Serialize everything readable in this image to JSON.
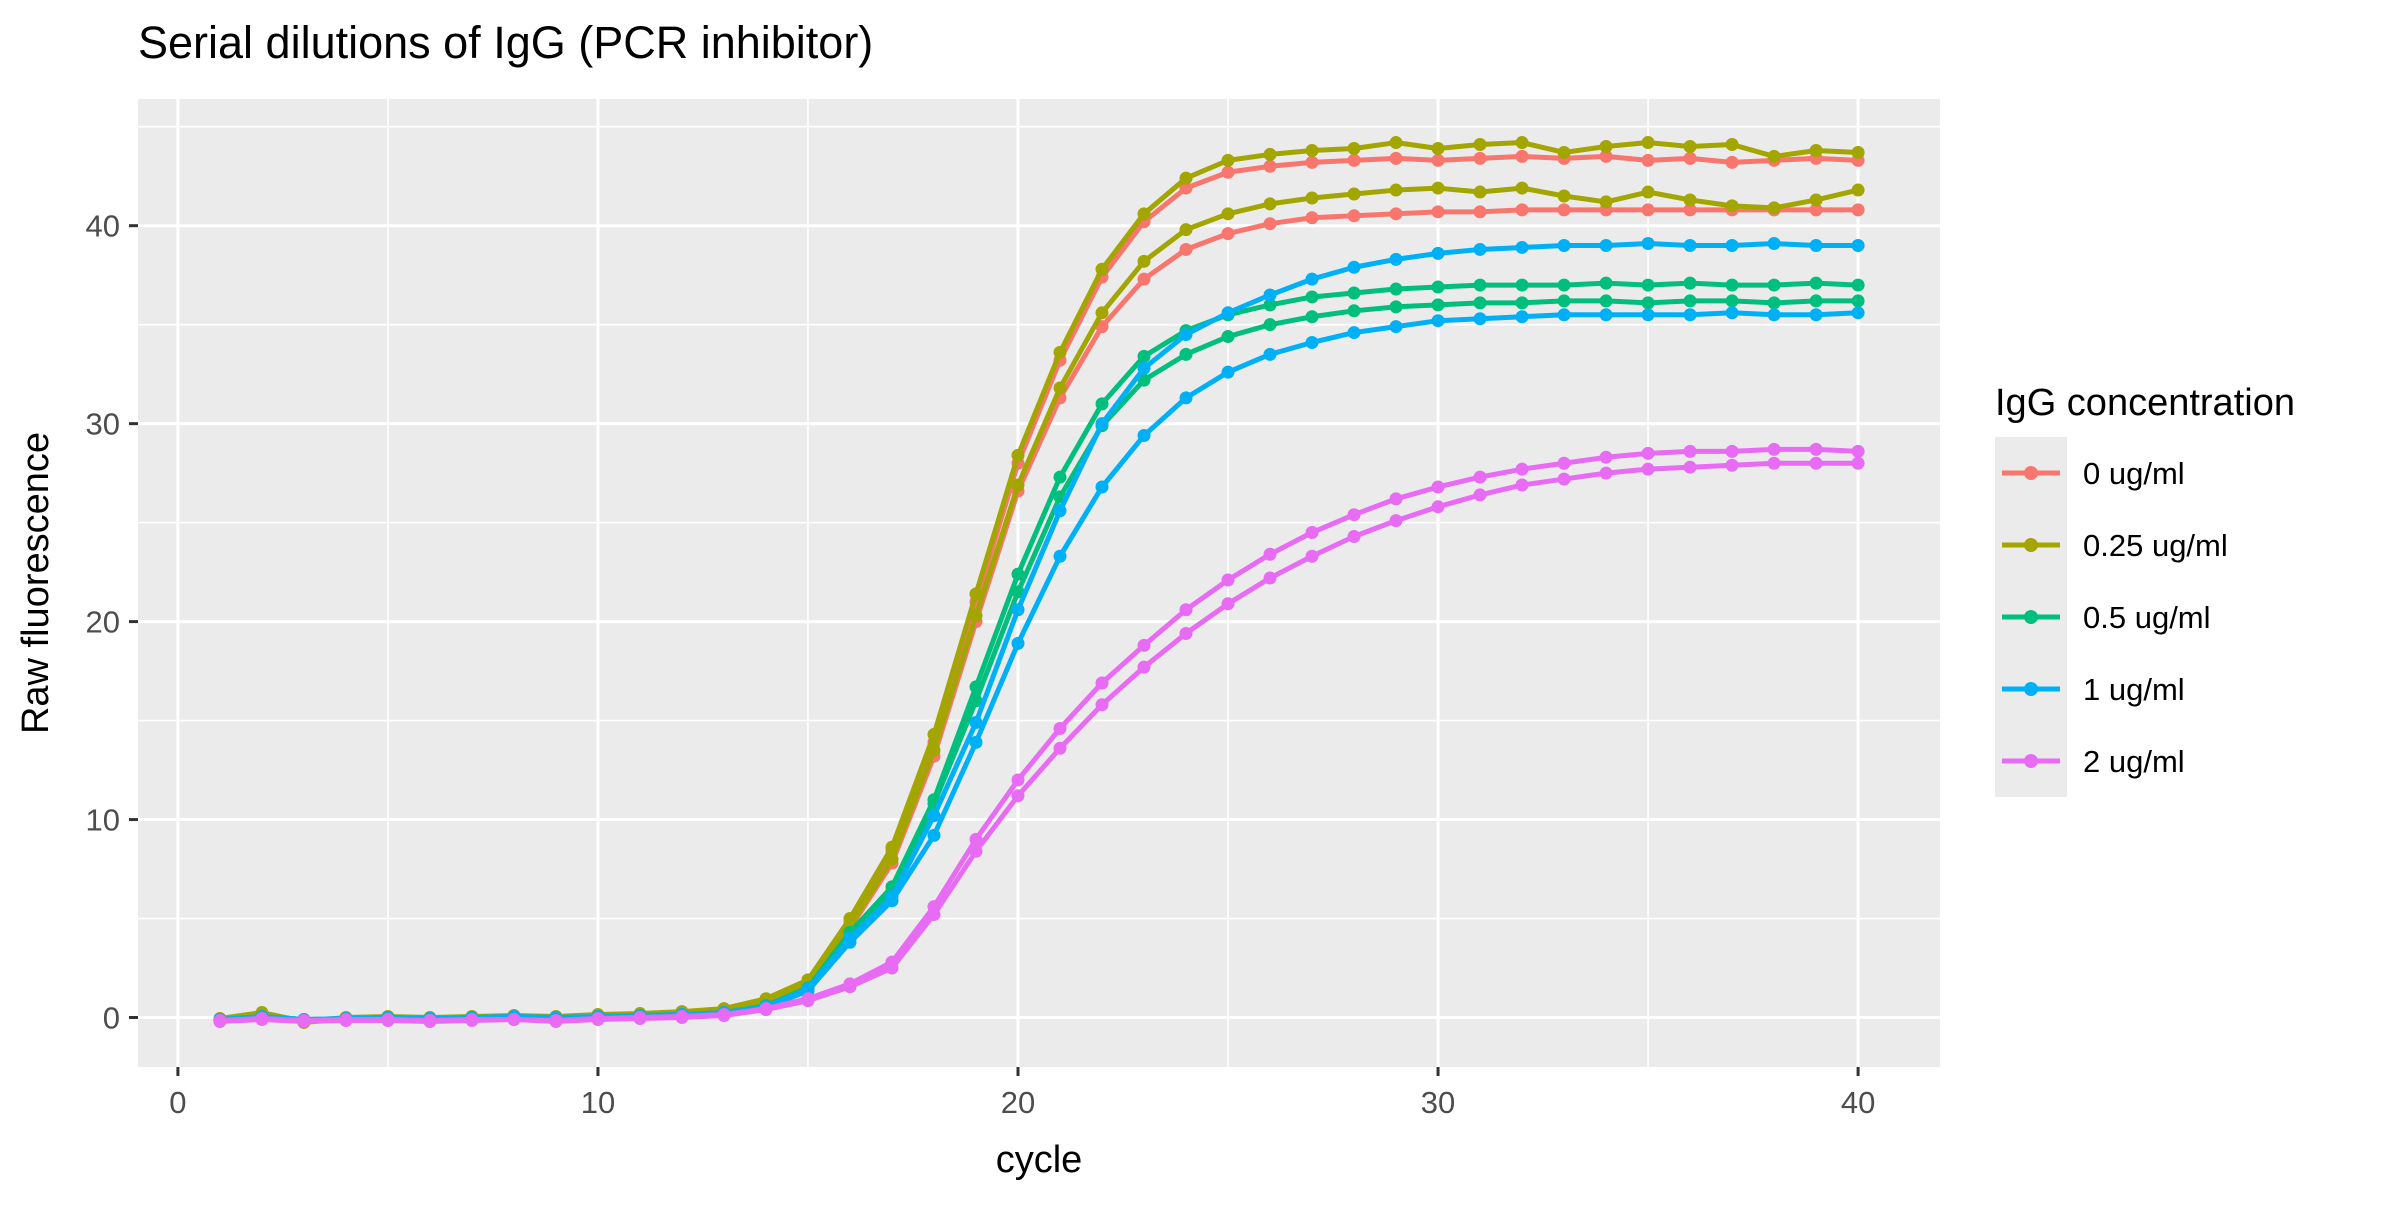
{
  "title": "Serial dilutions of IgG (PCR inhibitor)",
  "legend": {
    "title": "IgG concentration",
    "entries": [
      {
        "label": "0 ug/ml",
        "color": "#F8766D"
      },
      {
        "label": "0.25 ug/ml",
        "color": "#A3A500"
      },
      {
        "label": "0.5 ug/ml",
        "color": "#00BF7D"
      },
      {
        "label": "1 ug/ml",
        "color": "#00B0F6"
      },
      {
        "label": "2 ug/ml",
        "color": "#E76BF3"
      }
    ]
  },
  "colors": {
    "panel_bg": "#EBEBEB",
    "grid": "#FFFFFF",
    "tick_mark": "#333333",
    "tick_label": "#4D4D4D",
    "legend_key_bg": "#EBEBEB",
    "title_text": "#000000"
  },
  "chart_data": {
    "type": "line",
    "title": "Serial dilutions of IgG (PCR inhibitor)",
    "xlabel": "cycle",
    "ylabel": "Raw fluorescence",
    "legend_title": "IgG concentration",
    "legend_position": "right",
    "grid": "on",
    "x_ticks": [
      0,
      10,
      20,
      30,
      40
    ],
    "x_minor_ticks": [
      5,
      15,
      25,
      35
    ],
    "y_ticks": [
      0,
      10,
      20,
      30,
      40
    ],
    "y_minor_ticks": [
      5,
      15,
      25,
      35,
      45
    ],
    "xlim": [
      -0.95,
      41.95
    ],
    "ylim": [
      -2.5,
      46.4
    ],
    "x": [
      1,
      2,
      3,
      4,
      5,
      6,
      7,
      8,
      9,
      10,
      11,
      12,
      13,
      14,
      15,
      16,
      17,
      18,
      19,
      20,
      21,
      22,
      23,
      24,
      25,
      26,
      27,
      28,
      29,
      30,
      31,
      32,
      33,
      34,
      35,
      36,
      37,
      38,
      39,
      40
    ],
    "series": [
      {
        "name": "0 ug/ml",
        "replicate": 1,
        "color": "#F8766D",
        "values": [
          -0.1,
          0.05,
          -0.1,
          -0.05,
          0,
          -0.05,
          0,
          0.05,
          0,
          0.1,
          0.15,
          0.2,
          0.35,
          0.8,
          1.65,
          4.8,
          8.4,
          13.9,
          21,
          28,
          33.2,
          37.4,
          40.2,
          41.9,
          42.7,
          43,
          43.2,
          43.3,
          43.4,
          43.3,
          43.4,
          43.5,
          43.4,
          43.5,
          43.3,
          43.4,
          43.2,
          43.3,
          43.4,
          43.3
        ]
      },
      {
        "name": "0 ug/ml",
        "replicate": 2,
        "color": "#F8766D",
        "values": [
          -0.15,
          0,
          -0.15,
          -0.1,
          -0.05,
          -0.1,
          -0.05,
          0,
          -0.05,
          0.05,
          0.1,
          0.15,
          0.3,
          0.75,
          1.6,
          4.5,
          7.8,
          13.2,
          20,
          26.6,
          31.3,
          34.9,
          37.3,
          38.8,
          39.6,
          40.1,
          40.4,
          40.5,
          40.6,
          40.7,
          40.7,
          40.8,
          40.8,
          40.8,
          40.8,
          40.8,
          40.8,
          40.8,
          40.8,
          40.8
        ]
      },
      {
        "name": "0.25 ug/ml",
        "replicate": 1,
        "color": "#A3A500",
        "values": [
          -0.05,
          0.25,
          -0.2,
          0,
          0.05,
          0,
          0.05,
          0.1,
          0.05,
          0.15,
          0.2,
          0.3,
          0.45,
          0.95,
          1.9,
          5,
          8.6,
          14.3,
          21.4,
          28.4,
          33.6,
          37.8,
          40.6,
          42.4,
          43.3,
          43.6,
          43.8,
          43.9,
          44.2,
          43.9,
          44.1,
          44.2,
          43.7,
          44,
          44.2,
          44,
          44.1,
          43.5,
          43.8,
          43.7
        ]
      },
      {
        "name": "0.25 ug/ml",
        "replicate": 2,
        "color": "#A3A500",
        "values": [
          -0.1,
          0.2,
          -0.25,
          -0.05,
          0,
          -0.05,
          0,
          0.05,
          0,
          0.1,
          0.15,
          0.25,
          0.4,
          0.85,
          1.75,
          4.6,
          8,
          13.5,
          20.3,
          26.9,
          31.8,
          35.6,
          38.2,
          39.8,
          40.6,
          41.1,
          41.4,
          41.6,
          41.8,
          41.9,
          41.7,
          41.9,
          41.5,
          41.2,
          41.7,
          41.3,
          41,
          40.9,
          41.3,
          41.8
        ]
      },
      {
        "name": "0.5 ug/ml",
        "replicate": 1,
        "color": "#00BF7D",
        "values": [
          -0.1,
          0.05,
          -0.1,
          -0.05,
          0,
          -0.05,
          0,
          0,
          -0.05,
          0.05,
          0.1,
          0.15,
          0.25,
          0.6,
          1.5,
          4.3,
          6.6,
          11,
          16.7,
          22.4,
          27.3,
          31,
          33.4,
          34.7,
          35.5,
          36,
          36.4,
          36.6,
          36.8,
          36.9,
          37,
          37,
          37,
          37.1,
          37,
          37.1,
          37,
          37,
          37.1,
          37
        ]
      },
      {
        "name": "0.5 ug/ml",
        "replicate": 2,
        "color": "#00BF7D",
        "values": [
          -0.15,
          0,
          -0.15,
          -0.1,
          -0.05,
          -0.1,
          -0.05,
          -0.05,
          -0.1,
          0,
          0.05,
          0.1,
          0.2,
          0.55,
          1.4,
          4.1,
          6.4,
          10.8,
          16,
          21.5,
          26.3,
          29.9,
          32.2,
          33.5,
          34.4,
          35,
          35.4,
          35.7,
          35.9,
          36,
          36.1,
          36.1,
          36.2,
          36.2,
          36.1,
          36.2,
          36.2,
          36.1,
          36.2,
          36.2
        ]
      },
      {
        "name": "1 ug/ml",
        "replicate": 1,
        "color": "#00B0F6",
        "values": [
          -0.1,
          0.05,
          -0.1,
          -0.05,
          0,
          -0.05,
          0,
          0.05,
          0,
          0.05,
          0.1,
          0.15,
          0.25,
          0.55,
          1.45,
          4,
          6.1,
          10.2,
          14.9,
          20.6,
          25.6,
          30,
          32.8,
          34.5,
          35.6,
          36.5,
          37.3,
          37.9,
          38.3,
          38.6,
          38.8,
          38.9,
          39,
          39,
          39.1,
          39,
          39,
          39.1,
          39,
          39
        ]
      },
      {
        "name": "1 ug/ml",
        "replicate": 2,
        "color": "#00B0F6",
        "values": [
          -0.15,
          0,
          -0.15,
          -0.1,
          -0.05,
          -0.1,
          -0.05,
          0,
          -0.05,
          0,
          0.05,
          0.1,
          0.2,
          0.5,
          1.35,
          3.8,
          5.9,
          9.2,
          13.9,
          18.9,
          23.3,
          26.8,
          29.4,
          31.3,
          32.6,
          33.5,
          34.1,
          34.6,
          34.9,
          35.2,
          35.3,
          35.4,
          35.5,
          35.5,
          35.5,
          35.5,
          35.6,
          35.5,
          35.5,
          35.6
        ]
      },
      {
        "name": "2 ug/ml",
        "replicate": 1,
        "color": "#E76BF3",
        "values": [
          -0.15,
          -0.05,
          -0.15,
          -0.1,
          -0.1,
          -0.15,
          -0.1,
          -0.1,
          -0.15,
          -0.05,
          0,
          0.05,
          0.15,
          0.45,
          0.95,
          1.7,
          2.8,
          5.6,
          9,
          12,
          14.6,
          16.9,
          18.8,
          20.6,
          22.1,
          23.4,
          24.5,
          25.4,
          26.2,
          26.8,
          27.3,
          27.7,
          28,
          28.3,
          28.5,
          28.6,
          28.6,
          28.7,
          28.7,
          28.6
        ]
      },
      {
        "name": "2 ug/ml",
        "replicate": 2,
        "color": "#E76BF3",
        "values": [
          -0.2,
          -0.1,
          -0.2,
          -0.15,
          -0.15,
          -0.2,
          -0.15,
          -0.1,
          -0.2,
          -0.1,
          -0.05,
          0,
          0.1,
          0.4,
          0.85,
          1.55,
          2.5,
          5.2,
          8.4,
          11.2,
          13.6,
          15.8,
          17.7,
          19.4,
          20.9,
          22.2,
          23.3,
          24.3,
          25.1,
          25.8,
          26.4,
          26.9,
          27.2,
          27.5,
          27.7,
          27.8,
          27.9,
          28,
          28,
          28
        ]
      }
    ]
  }
}
